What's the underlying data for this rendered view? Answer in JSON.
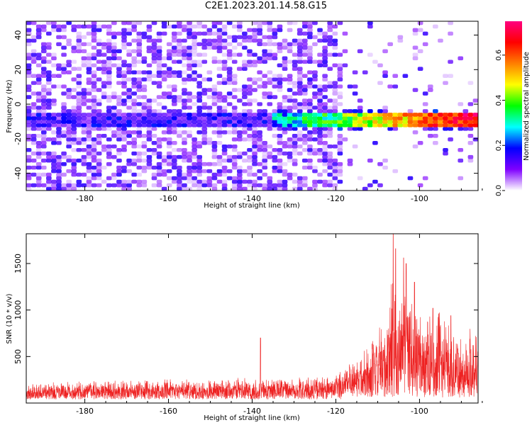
{
  "page": {
    "title": "C2E1.2023.201.14.58.G15"
  },
  "chart_data": [
    {
      "type": "heatmap",
      "xlabel": "Height of straight line (km)",
      "ylabel": "Frequency (Hz)",
      "xlim": [
        -194,
        -86
      ],
      "ylim": [
        -50,
        48
      ],
      "x_ticks": [
        -180,
        -160,
        -140,
        -120,
        -100
      ],
      "y_ticks": [
        -40,
        -20,
        0,
        20,
        40
      ],
      "colorbar": {
        "label": "Normalized spectral amplitude",
        "range": [
          0,
          0.75
        ],
        "ticks": [
          0.0,
          0.2,
          0.4,
          0.6
        ],
        "colormap": [
          "#ffffff",
          "#7f00ff",
          "#0000ff",
          "#00ffff",
          "#00ff00",
          "#ffff00",
          "#ff7f00",
          "#ff0000",
          "#ff0080"
        ]
      },
      "signal_band": {
        "frequency": -9,
        "start": -135,
        "end": -86
      },
      "noise_cutoff_height": -118
    },
    {
      "type": "line",
      "xlabel": "Height of straight line (km)",
      "ylabel": "SNR (10 * v/v)",
      "xlim": [
        -194,
        -86
      ],
      "ylim": [
        0,
        1820
      ],
      "x_ticks": [
        -180,
        -160,
        -140,
        -120,
        -100
      ],
      "y_ticks": [
        500,
        1000,
        1500
      ],
      "color": "#ee2222",
      "baseline_noise": {
        "start": -194,
        "end": -118,
        "mean": 210,
        "spread": 140
      },
      "envelope": [
        {
          "x": -194,
          "y": 230
        },
        {
          "x": -160,
          "y": 260
        },
        {
          "x": -140,
          "y": 280
        },
        {
          "x": -120,
          "y": 300
        },
        {
          "x": -117,
          "y": 520
        },
        {
          "x": -112,
          "y": 620
        },
        {
          "x": -108,
          "y": 900
        },
        {
          "x": -106,
          "y": 1820
        },
        {
          "x": -105,
          "y": 900
        },
        {
          "x": -103,
          "y": 1560
        },
        {
          "x": -101,
          "y": 1050
        },
        {
          "x": -99,
          "y": 950
        },
        {
          "x": -96,
          "y": 1000
        },
        {
          "x": -93,
          "y": 920
        },
        {
          "x": -90,
          "y": 700
        },
        {
          "x": -86,
          "y": 880
        }
      ],
      "spikes": [
        {
          "x": -138,
          "y": 700
        },
        {
          "x": -106.3,
          "y": 1820
        },
        {
          "x": -105.7,
          "y": 1660
        },
        {
          "x": -103.8,
          "y": 1560
        },
        {
          "x": -103.2,
          "y": 1500
        },
        {
          "x": -101.2,
          "y": 1300
        },
        {
          "x": -96.8,
          "y": 1020
        },
        {
          "x": -95.4,
          "y": 960
        },
        {
          "x": -92.5,
          "y": 940
        }
      ]
    }
  ]
}
